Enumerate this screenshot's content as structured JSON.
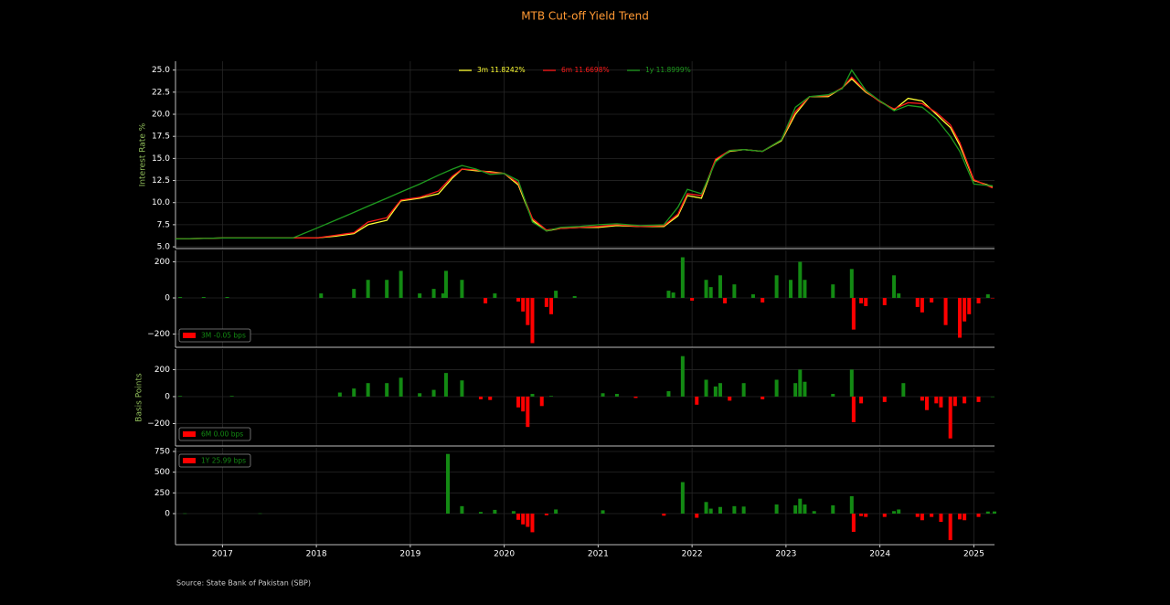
{
  "title": "MTB Cut-off Yield Trend",
  "source": "Source: State Bank of Pakistan (SBP)",
  "chart_data": [
    {
      "type": "line",
      "ylabel": "Interest Rate %",
      "legend": "upper center",
      "grid": true,
      "xlim": [
        2016.5,
        2025.22
      ],
      "xticks": [
        2017,
        2018,
        2019,
        2020,
        2021,
        2022,
        2023,
        2024,
        2025
      ],
      "ylim": [
        4.8,
        26.0
      ],
      "yticks": [
        {
          "value": 5,
          "label": "5.0"
        },
        {
          "value": 7.5,
          "label": "7.5"
        },
        {
          "value": 10,
          "label": "10.0"
        },
        {
          "value": 12.5,
          "label": "12.5"
        },
        {
          "value": 15,
          "label": "15.0"
        },
        {
          "value": 17.5,
          "label": "17.5"
        },
        {
          "value": 20,
          "label": "20.0"
        },
        {
          "value": 22.5,
          "label": "22.5"
        },
        {
          "value": 25,
          "label": "25.0"
        }
      ],
      "x": [
        2016.5,
        2016.8,
        2017.0,
        2017.3,
        2017.75,
        2018.0,
        2018.2,
        2018.4,
        2018.55,
        2018.75,
        2018.9,
        2019.1,
        2019.3,
        2019.45,
        2019.55,
        2019.7,
        2019.85,
        2020.0,
        2020.15,
        2020.3,
        2020.45,
        2020.6,
        2020.8,
        2021.0,
        2021.2,
        2021.45,
        2021.7,
        2021.85,
        2021.95,
        2022.1,
        2022.25,
        2022.4,
        2022.55,
        2022.75,
        2022.95,
        2023.1,
        2023.25,
        2023.45,
        2023.6,
        2023.7,
        2023.85,
        2024.0,
        2024.15,
        2024.3,
        2024.45,
        2024.6,
        2024.75,
        2024.85,
        2025.0,
        2025.2
      ],
      "series": [
        {
          "name": "3m 11.8242%",
          "color": "#ffff33",
          "values": [
            5.9,
            5.95,
            6.0,
            6.0,
            6.0,
            6.0,
            6.2,
            6.5,
            7.5,
            8.0,
            10.2,
            10.5,
            11.0,
            12.8,
            13.8,
            13.6,
            13.5,
            13.3,
            12.0,
            8.0,
            6.8,
            7.1,
            7.2,
            7.2,
            7.4,
            7.3,
            7.3,
            8.5,
            10.8,
            10.5,
            14.8,
            15.8,
            16.0,
            15.8,
            17.0,
            20.0,
            22.0,
            22.0,
            23.0,
            24.0,
            22.5,
            21.5,
            20.5,
            21.8,
            21.5,
            20.0,
            18.5,
            16.5,
            12.5,
            11.82
          ]
        },
        {
          "name": "6m 11.6698%",
          "color": "#ff1a1a",
          "values": [
            5.9,
            5.95,
            6.0,
            6.0,
            6.0,
            6.0,
            6.3,
            6.6,
            7.8,
            8.3,
            10.3,
            10.6,
            11.3,
            13.0,
            13.8,
            13.7,
            13.4,
            13.3,
            12.2,
            8.2,
            6.9,
            7.1,
            7.2,
            7.3,
            7.5,
            7.3,
            7.4,
            8.7,
            11.0,
            10.8,
            14.9,
            15.9,
            16.0,
            15.8,
            17.1,
            20.3,
            22.0,
            22.1,
            23.0,
            24.2,
            22.6,
            21.4,
            20.6,
            21.3,
            21.2,
            20.2,
            18.8,
            16.8,
            12.6,
            11.67
          ]
        },
        {
          "name": "1y 11.8999%",
          "color": "#1e9a1e",
          "values": [
            5.9,
            5.95,
            6.0,
            6.0,
            6.0,
            7.1,
            8.0,
            8.9,
            9.6,
            10.5,
            11.2,
            12.1,
            13.1,
            13.8,
            14.2,
            13.8,
            13.2,
            13.3,
            12.5,
            7.8,
            6.8,
            7.2,
            7.3,
            7.5,
            7.6,
            7.4,
            7.5,
            9.5,
            11.5,
            11.0,
            14.6,
            15.9,
            16.0,
            15.8,
            17.1,
            20.8,
            22.0,
            22.2,
            22.9,
            25.0,
            22.7,
            21.5,
            20.4,
            21.0,
            20.8,
            19.5,
            17.5,
            15.8,
            12.1,
            11.9
          ]
        }
      ]
    },
    {
      "type": "bar",
      "legend": "lower left",
      "grid": true,
      "pos_color": "#138a13",
      "xlim": [
        2016.5,
        2025.22
      ],
      "xticks": [
        2017,
        2018,
        2019,
        2020,
        2021,
        2022,
        2023,
        2024,
        2025
      ],
      "ylim": [
        -273,
        263
      ],
      "yticks": [
        {
          "value": -200,
          "label": "−200"
        },
        0,
        200
      ],
      "x": [
        2016.55,
        2016.8,
        2017.05,
        2018.05,
        2018.4,
        2018.55,
        2018.75,
        2018.9,
        2019.1,
        2019.25,
        2019.35,
        2019.38,
        2019.55,
        2019.8,
        2019.9,
        2020.15,
        2020.2,
        2020.25,
        2020.3,
        2020.45,
        2020.5,
        2020.55,
        2020.75,
        2021.75,
        2021.8,
        2021.9,
        2022.0,
        2022.15,
        2022.2,
        2022.3,
        2022.35,
        2022.45,
        2022.65,
        2022.75,
        2022.9,
        2023.05,
        2023.15,
        2023.2,
        2023.5,
        2023.7,
        2023.72,
        2023.8,
        2023.85,
        2024.05,
        2024.15,
        2024.2,
        2024.4,
        2024.45,
        2024.55,
        2024.7,
        2024.85,
        2024.9,
        2024.95,
        2025.05,
        2025.15,
        2025.2
      ],
      "series": [
        {
          "name": "3M -0.05 bps",
          "color": "#ff0000",
          "values": [
            5,
            5,
            5,
            25,
            50,
            100,
            100,
            150,
            25,
            50,
            25,
            150,
            100,
            -30,
            25,
            -20,
            -75,
            -150,
            -250,
            -50,
            -90,
            40,
            10,
            40,
            30,
            225,
            -15,
            100,
            60,
            125,
            -30,
            75,
            20,
            -25,
            125,
            100,
            200,
            100,
            75,
            160,
            -175,
            -30,
            -45,
            -40,
            125,
            25,
            -50,
            -80,
            -25,
            -150,
            -220,
            -130,
            -90,
            -30,
            20,
            -0.05
          ]
        }
      ]
    },
    {
      "type": "bar",
      "legend": "lower left",
      "grid": true,
      "pos_color": "#138a13",
      "ylabel": "Basis Points",
      "xlim": [
        2016.5,
        2025.22
      ],
      "xticks": [
        2017,
        2018,
        2019,
        2020,
        2021,
        2022,
        2023,
        2024,
        2025
      ],
      "ylim": [
        -366,
        352
      ],
      "yticks": [
        {
          "value": -200,
          "label": "−200"
        },
        0,
        200
      ],
      "x": [
        2016.55,
        2017.1,
        2018.25,
        2018.4,
        2018.55,
        2018.75,
        2018.9,
        2019.1,
        2019.25,
        2019.38,
        2019.55,
        2019.75,
        2019.85,
        2020.15,
        2020.2,
        2020.25,
        2020.3,
        2020.4,
        2020.5,
        2021.05,
        2021.2,
        2021.4,
        2021.75,
        2021.9,
        2022.05,
        2022.15,
        2022.25,
        2022.3,
        2022.4,
        2022.55,
        2022.75,
        2022.9,
        2023.1,
        2023.15,
        2023.2,
        2023.5,
        2023.7,
        2023.72,
        2023.8,
        2024.05,
        2024.25,
        2024.45,
        2024.5,
        2024.6,
        2024.65,
        2024.75,
        2024.8,
        2024.9,
        2025.05,
        2025.2
      ],
      "series": [
        {
          "name": "6M 0.00 bps",
          "color": "#ff0000",
          "values": [
            5,
            5,
            30,
            60,
            100,
            100,
            140,
            25,
            50,
            175,
            120,
            -20,
            -25,
            -80,
            -110,
            -225,
            20,
            -70,
            5,
            25,
            20,
            -10,
            40,
            300,
            -60,
            125,
            75,
            100,
            -30,
            100,
            -20,
            125,
            100,
            200,
            110,
            20,
            200,
            -190,
            -50,
            -40,
            100,
            -30,
            -100,
            -50,
            -80,
            -310,
            -70,
            -50,
            -40,
            0
          ]
        }
      ]
    },
    {
      "type": "bar",
      "legend": "upper left",
      "grid": true,
      "pos_color": "#138a13",
      "xlabels": true,
      "xlim": [
        2016.5,
        2025.22
      ],
      "xticks": [
        2017,
        2018,
        2019,
        2020,
        2021,
        2022,
        2023,
        2024,
        2025
      ],
      "ylim": [
        -375,
        794
      ],
      "yticks": [
        0,
        250,
        500,
        750
      ],
      "x": [
        2016.6,
        2017.4,
        2019.4,
        2019.55,
        2019.75,
        2019.9,
        2020.1,
        2020.15,
        2020.2,
        2020.25,
        2020.3,
        2020.45,
        2020.55,
        2021.05,
        2021.7,
        2021.9,
        2022.05,
        2022.15,
        2022.2,
        2022.3,
        2022.45,
        2022.55,
        2022.9,
        2023.1,
        2023.15,
        2023.2,
        2023.3,
        2023.5,
        2023.7,
        2023.72,
        2023.8,
        2023.85,
        2024.05,
        2024.15,
        2024.2,
        2024.4,
        2024.45,
        2024.55,
        2024.65,
        2024.75,
        2024.85,
        2024.9,
        2025.05,
        2025.15,
        2025.22
      ],
      "series": [
        {
          "name": "1Y 25.99 bps",
          "color": "#ff0000",
          "values": [
            3,
            3,
            720,
            90,
            20,
            45,
            30,
            -75,
            -130,
            -160,
            -225,
            -20,
            50,
            40,
            -25,
            380,
            -50,
            140,
            60,
            80,
            90,
            85,
            110,
            100,
            180,
            110,
            30,
            100,
            210,
            -220,
            -30,
            -40,
            -40,
            30,
            50,
            -40,
            -80,
            -40,
            -100,
            -320,
            -70,
            -80,
            -40,
            25,
            26
          ]
        }
      ]
    }
  ]
}
